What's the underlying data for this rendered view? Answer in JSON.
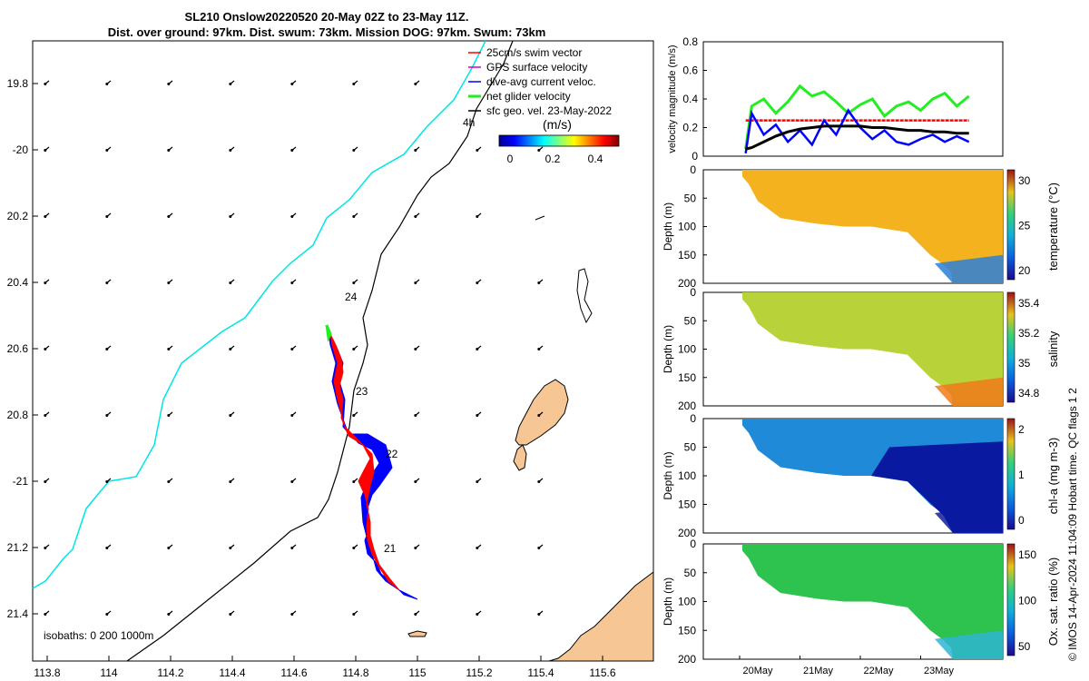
{
  "title_line1": "SL210 Onslow20220520 20-May 02Z to 23-May 11Z.",
  "title_line2": "Dist. over ground: 97km. Dist. swum: 73km. Mission DOG: 97km. Swum: 73km",
  "credit": "© IMOS 14-Apr-2024 11:04:09 Hobart time. QC flags 1  2",
  "colors": {
    "coast": "#00e5e5",
    "isobath": "#000000",
    "land": "#f6c794",
    "swim": "#ff0000",
    "gps": "#d000d0",
    "diveavg": "#0000ff",
    "net": "#22ee22",
    "sfc": "#000000"
  },
  "map": {
    "lon_ticks": [
      "113.8",
      "114",
      "114.2",
      "114.4",
      "114.6",
      "114.8",
      "115",
      "115.2",
      "115.4",
      "115.6"
    ],
    "lat_ticks": [
      "19.8",
      "-20",
      "20.2",
      "20.4",
      "20.6",
      "20.8",
      "-21",
      "21.2",
      "21.4"
    ],
    "legend": [
      {
        "label": "25cm/s swim vector",
        "key": "swim"
      },
      {
        "label": "GPS surface velocity",
        "key": "gps"
      },
      {
        "label": "dive-avg current veloc.",
        "key": "diveavg"
      },
      {
        "label": "net glider velocity",
        "key": "net"
      },
      {
        "label": "sfc geo. vel. 23-May-2022",
        "key": "sfc"
      }
    ],
    "legend_extra": "4h",
    "colorbar_label": "(m/s)",
    "colorbar_ticks": [
      "0",
      "0.2",
      "0.4"
    ],
    "day_labels": [
      "24",
      "23",
      "22",
      "21"
    ],
    "isobaths_label": "isobaths: 0   200  1000m"
  },
  "chart_data": [
    {
      "type": "line",
      "ylabel": "velocity magnitude (m/s)",
      "ylim": [
        0,
        0.8
      ],
      "yticks": [
        "0",
        "0.2",
        "0.4",
        "0.6",
        "0.8"
      ],
      "x": [
        20.1,
        20.2,
        20.4,
        20.6,
        20.8,
        21.0,
        21.2,
        21.4,
        21.6,
        21.8,
        22.0,
        22.2,
        22.4,
        22.6,
        22.8,
        23.0,
        23.2,
        23.4,
        23.6,
        23.8
      ],
      "series": [
        {
          "key": "net",
          "values": [
            0.05,
            0.35,
            0.4,
            0.3,
            0.38,
            0.49,
            0.42,
            0.45,
            0.38,
            0.3,
            0.36,
            0.4,
            0.28,
            0.35,
            0.38,
            0.32,
            0.4,
            0.44,
            0.35,
            0.42
          ]
        },
        {
          "key": "swim",
          "values": [
            0.25,
            0.25,
            0.25,
            0.25,
            0.25,
            0.25,
            0.25,
            0.25,
            0.25,
            0.25,
            0.25,
            0.25,
            0.25,
            0.25,
            0.25,
            0.25,
            0.25,
            0.25,
            0.25,
            0.25
          ]
        },
        {
          "key": "diveavg",
          "values": [
            0.02,
            0.3,
            0.15,
            0.22,
            0.1,
            0.18,
            0.08,
            0.25,
            0.15,
            0.32,
            0.2,
            0.12,
            0.18,
            0.1,
            0.08,
            0.12,
            0.15,
            0.1,
            0.14,
            0.1
          ]
        },
        {
          "key": "sfc",
          "values": [
            0.05,
            0.06,
            0.1,
            0.14,
            0.17,
            0.19,
            0.2,
            0.21,
            0.21,
            0.21,
            0.21,
            0.2,
            0.2,
            0.19,
            0.18,
            0.18,
            0.17,
            0.17,
            0.16,
            0.16
          ]
        }
      ]
    },
    {
      "type": "heatmap",
      "ylabel": "Depth (m)",
      "cblabel": "temperature (°C)",
      "cbticks": [
        "20",
        "25",
        "30"
      ],
      "yticks": [
        "0",
        "50",
        "100",
        "150",
        "200"
      ]
    },
    {
      "type": "heatmap",
      "ylabel": "Depth (m)",
      "cblabel": "salinity",
      "cbticks": [
        "34.8",
        "35",
        "35.2",
        "35.4"
      ],
      "yticks": [
        "0",
        "50",
        "100",
        "150",
        "200"
      ]
    },
    {
      "type": "heatmap",
      "ylabel": "Depth (m)",
      "cblabel": "chl-a (mg m-3)",
      "cbticks": [
        "0",
        "1",
        "2"
      ],
      "yticks": [
        "0",
        "50",
        "100",
        "150",
        "200"
      ]
    },
    {
      "type": "heatmap",
      "ylabel": "Depth (m)",
      "cblabel": "Ox. sat. ratio (%)",
      "cbticks": [
        "50",
        "100",
        "150"
      ],
      "yticks": [
        "0",
        "50",
        "100",
        "150",
        "200"
      ],
      "xticks": [
        "20May",
        "21May",
        "22May",
        "23May"
      ]
    }
  ]
}
